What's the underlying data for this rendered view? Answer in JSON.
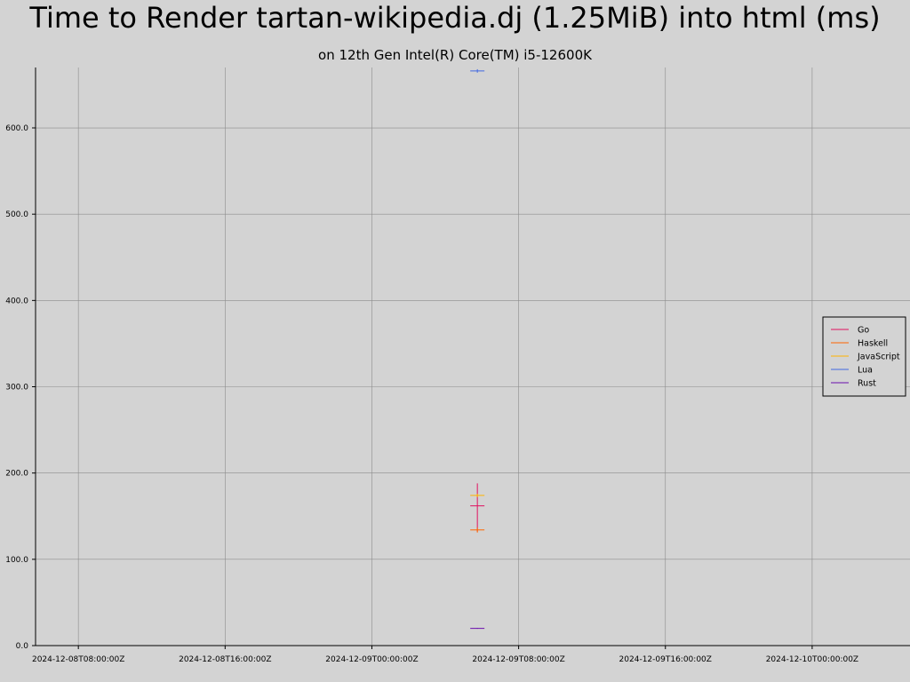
{
  "chart_data": {
    "type": "line",
    "title": "Time to Render tartan-wikipedia.dj (1.25MiB) into html (ms)",
    "subtitle": "on 12th Gen Intel(R) Core(TM) i5-12600K",
    "xlabel": "",
    "ylabel": "",
    "x_ticks": [
      "2024-12-08T08:00:00Z",
      "2024-12-08T16:00:00Z",
      "2024-12-09T00:00:00Z",
      "2024-12-09T08:00:00Z",
      "2024-12-09T16:00:00Z",
      "2024-12-10T00:00:00Z"
    ],
    "xlim": [
      "2024-12-08T05:40:00Z",
      "2024-12-10T05:20:00Z"
    ],
    "y_ticks": [
      "0.0",
      "100.0",
      "200.0",
      "300.0",
      "400.0",
      "500.0",
      "600.0"
    ],
    "ylim": [
      0,
      670
    ],
    "grid": true,
    "legend_position": "right",
    "series": [
      {
        "name": "Go",
        "color": "#e0115f",
        "points": [
          {
            "x": "2024-12-09T05:45:00Z",
            "y": 162,
            "low": 132,
            "high": 188
          }
        ]
      },
      {
        "name": "Haskell",
        "color": "#ff6600",
        "points": [
          {
            "x": "2024-12-09T05:45:00Z",
            "y": 134,
            "low": 131,
            "high": 137
          }
        ]
      },
      {
        "name": "JavaScript",
        "color": "#ffb300",
        "points": [
          {
            "x": "2024-12-09T05:45:00Z",
            "y": 174,
            "low": 172,
            "high": 176
          }
        ]
      },
      {
        "name": "Lua",
        "color": "#4169e1",
        "points": [
          {
            "x": "2024-12-09T05:45:00Z",
            "y": 666,
            "low": 664,
            "high": 668
          }
        ]
      },
      {
        "name": "Rust",
        "color": "#6a0dad",
        "points": [
          {
            "x": "2024-12-09T05:45:00Z",
            "y": 20,
            "low": 19.5,
            "high": 20.5
          }
        ]
      }
    ]
  }
}
